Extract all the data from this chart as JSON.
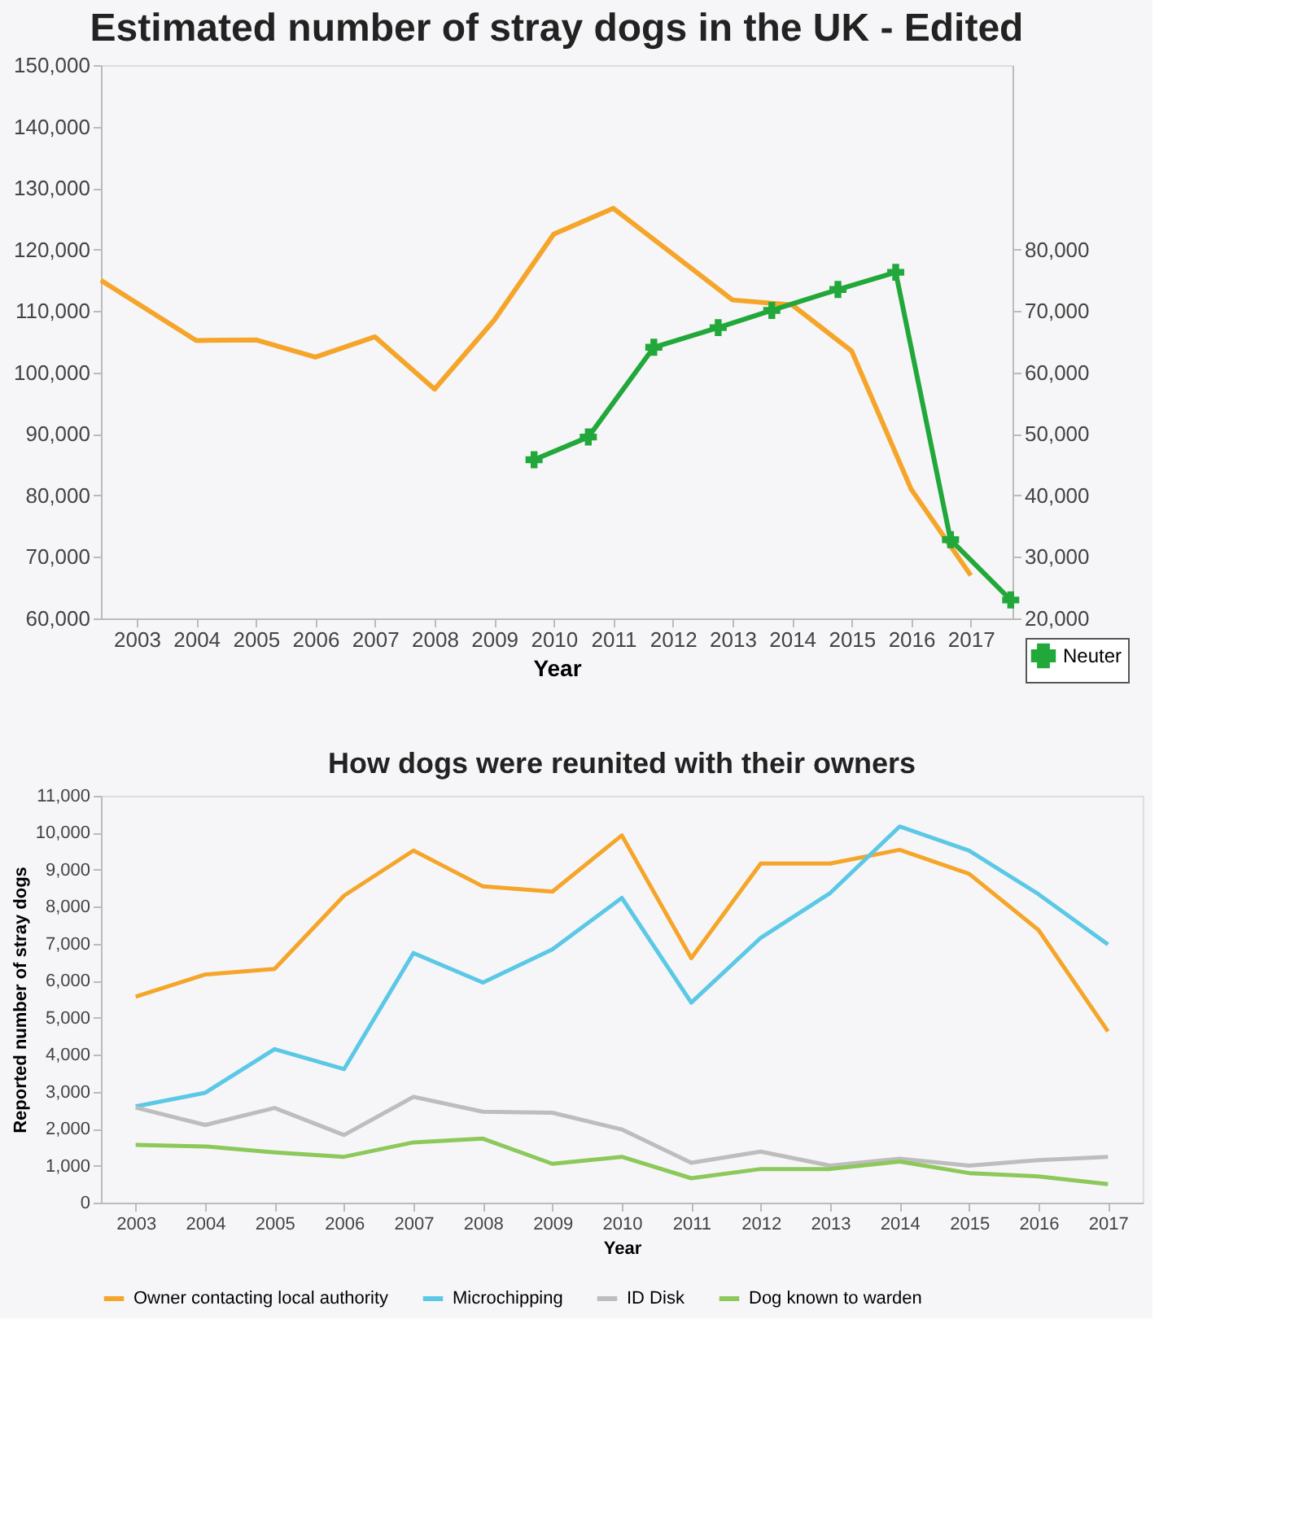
{
  "chart_data": [
    {
      "type": "line",
      "title": "Estimated number of stray dogs in the UK - Edited",
      "xlabel": "Year",
      "xlim": [
        2002.4,
        2017.7
      ],
      "xticks": [
        2003,
        2004,
        2005,
        2006,
        2007,
        2008,
        2009,
        2010,
        2011,
        2012,
        2013,
        2014,
        2015,
        2016,
        2017
      ],
      "ylim": [
        60000,
        150000
      ],
      "yticks": [
        {
          "value": 60000,
          "label": "60,000"
        },
        {
          "value": 70000,
          "label": "70,000"
        },
        {
          "value": 80000,
          "label": "80,000"
        },
        {
          "value": 90000,
          "label": "90,000"
        },
        {
          "value": 100000,
          "label": "100,000"
        },
        {
          "value": 110000,
          "label": "110,000"
        },
        {
          "value": 120000,
          "label": "120,000"
        },
        {
          "value": 130000,
          "label": "130,000"
        },
        {
          "value": 140000,
          "label": "140,000"
        },
        {
          "value": 150000,
          "label": "150,000"
        }
      ],
      "y2lim": [
        20000,
        110000
      ],
      "y2ticks": [
        {
          "value": 20000,
          "label": "20,000"
        },
        {
          "value": 30000,
          "label": "30,000"
        },
        {
          "value": 40000,
          "label": "40,000"
        },
        {
          "value": 50000,
          "label": "50,000"
        },
        {
          "value": 60000,
          "label": "60,000"
        },
        {
          "value": 70000,
          "label": "70,000"
        },
        {
          "value": 80000,
          "label": "80,000"
        }
      ],
      "grid": false,
      "legend": "bottom right",
      "line_style": "solid",
      "series": [
        {
          "color": "#f5a52a",
          "marker": "none",
          "x": [
            2002.4,
            2004,
            2005,
            2006,
            2007,
            2008,
            2009,
            2010,
            2011,
            2013,
            2014,
            2015,
            2016,
            2017
          ],
          "values": [
            115000,
            105200,
            105300,
            102500,
            105800,
            97300,
            108500,
            122500,
            126700,
            111800,
            111000,
            103500,
            81000,
            67000
          ]
        },
        {
          "name": "Neuter",
          "color": "#22a83a",
          "marker": "cross",
          "axis": "y2",
          "x": [
            2009.67,
            2010.58,
            2011.68,
            2012.76,
            2013.66,
            2014.77,
            2015.74,
            2016.66,
            2017.67
          ],
          "values": [
            45800,
            49500,
            64100,
            67300,
            70100,
            73500,
            76300,
            32800,
            23000
          ]
        }
      ]
    },
    {
      "type": "line",
      "title": "How dogs were reunited with their owners",
      "xlabel": "Year",
      "ylabel": "Reported number of stray dogs",
      "categories": [
        "2003",
        "2004",
        "2005",
        "2006",
        "2007",
        "2008",
        "2009",
        "2010",
        "2011",
        "2012",
        "2013",
        "2014",
        "2015",
        "2016",
        "2017"
      ],
      "ylim": [
        0,
        11000
      ],
      "yticks": [
        0,
        {
          "value": 1000,
          "label": "1,000"
        },
        {
          "value": 2000,
          "label": "2,000"
        },
        {
          "value": 3000,
          "label": "3,000"
        },
        {
          "value": 4000,
          "label": "4,000"
        },
        {
          "value": 5000,
          "label": "5,000"
        },
        {
          "value": 6000,
          "label": "6,000"
        },
        {
          "value": 7000,
          "label": "7,000"
        },
        {
          "value": 8000,
          "label": "8,000"
        },
        {
          "value": 9000,
          "label": "9,000"
        },
        {
          "value": 10000,
          "label": "10,000"
        },
        {
          "value": 11000,
          "label": "11,000"
        }
      ],
      "grid": false,
      "legend": "bottom",
      "line_style": "solid",
      "marker": "none",
      "series": [
        {
          "name": "Owner contacting local authority",
          "color": "#f5a52a",
          "values": [
            5570,
            6170,
            6320,
            8300,
            9520,
            8550,
            8410,
            9930,
            6610,
            9170,
            9170,
            9540,
            8890,
            7370,
            4630
          ]
        },
        {
          "name": "Microchipping",
          "color": "#5bc8e6",
          "values": [
            2600,
            2970,
            4150,
            3610,
            6750,
            5950,
            6850,
            8240,
            5410,
            7160,
            8370,
            10170,
            9520,
            8340,
            6980
          ]
        },
        {
          "name": "ID Disk",
          "color": "#bdbdbd",
          "values": [
            2570,
            2100,
            2560,
            1830,
            2860,
            2460,
            2430,
            1980,
            1080,
            1380,
            1000,
            1190,
            1000,
            1150,
            1240
          ]
        },
        {
          "name": "Dog known to warden",
          "color": "#8cc85a",
          "values": [
            1560,
            1520,
            1360,
            1240,
            1630,
            1730,
            1050,
            1240,
            660,
            910,
            910,
            1110,
            800,
            710,
            500
          ]
        }
      ]
    }
  ]
}
